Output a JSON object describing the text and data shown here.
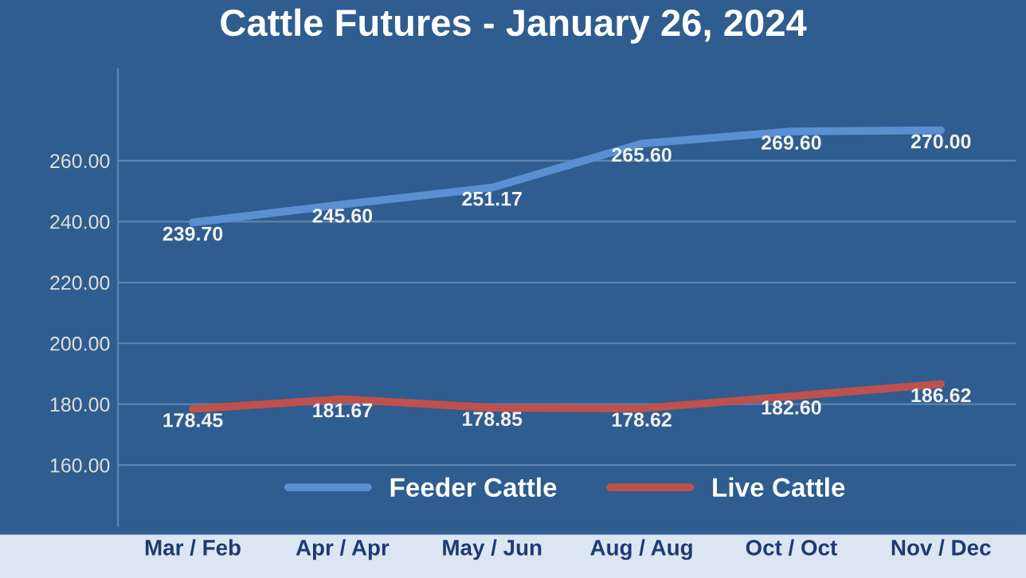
{
  "chart_data": {
    "type": "line",
    "title": "Cattle Futures - January 26, 2024",
    "categories": [
      "Mar / Feb",
      "Apr / Apr",
      "May / Jun",
      "Aug / Aug",
      "Oct / Oct",
      "Nov / Dec"
    ],
    "series": [
      {
        "name": "Feeder Cattle",
        "color": "#5b8fd3",
        "values": [
          239.7,
          245.6,
          251.17,
          265.6,
          269.6,
          270.0
        ],
        "value_labels": [
          "239.70",
          "245.60",
          "251.17",
          "265.60",
          "269.60",
          "270.00"
        ]
      },
      {
        "name": "Live Cattle",
        "color": "#c0504d",
        "values": [
          178.45,
          181.67,
          178.85,
          178.62,
          182.6,
          186.62
        ],
        "value_labels": [
          "178.45",
          "181.67",
          "178.85",
          "178.62",
          "182.60",
          "186.62"
        ]
      }
    ],
    "ylim": [
      140,
      290
    ],
    "yticks": [
      {
        "value": 160,
        "label": "160.00"
      },
      {
        "value": 180,
        "label": "180.00"
      },
      {
        "value": 200,
        "label": "200.00"
      },
      {
        "value": 220,
        "label": "220.00"
      },
      {
        "value": 240,
        "label": "240.00"
      },
      {
        "value": 260,
        "label": "260.00"
      }
    ],
    "grid": "y",
    "legend": "bottom",
    "marker": "none",
    "line_style": "solid"
  }
}
